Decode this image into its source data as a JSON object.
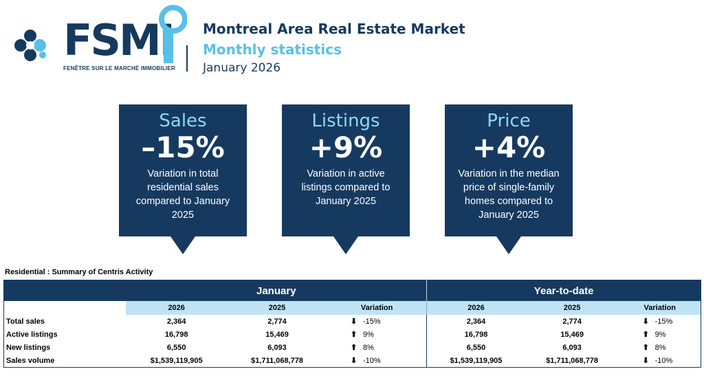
{
  "brand": {
    "name": "FSMI",
    "tagline": "FENÊTRE SUR LE MARCHÉ IMMOBILIER"
  },
  "header": {
    "title": "Montreal Area Real Estate Market",
    "subtitle": "Monthly statistics",
    "date": "January 2026"
  },
  "stats": [
    {
      "title": "Sales",
      "value": "–15%",
      "description": "Variation in total residential sales compared to January 2025"
    },
    {
      "title": "Listings",
      "value": "+9%",
      "description": "Variation in active listings compared to January 2025"
    },
    {
      "title": "Price",
      "value": "+4%",
      "description": "Variation in the median price of single-family homes compared to January 2025"
    }
  ],
  "table": {
    "caption": "Residential : Summary of Centris Activity",
    "group_january": "January",
    "group_ytd": "Year-to-date",
    "col_2026": "2026",
    "col_2025": "2025",
    "col_variation": "Variation",
    "rows": [
      {
        "label": "Total sales",
        "jan_2026": "2,364",
        "jan_2025": "2,774",
        "jan_dir": "down",
        "jan_var": "-15%",
        "ytd_2026": "2,364",
        "ytd_2025": "2,774",
        "ytd_dir": "down",
        "ytd_var": "-15%"
      },
      {
        "label": "Active listings",
        "jan_2026": "16,798",
        "jan_2025": "15,469",
        "jan_dir": "up",
        "jan_var": "9%",
        "ytd_2026": "16,798",
        "ytd_2025": "15,469",
        "ytd_dir": "up",
        "ytd_var": "9%"
      },
      {
        "label": "New listings",
        "jan_2026": "6,550",
        "jan_2025": "6,093",
        "jan_dir": "up",
        "jan_var": "8%",
        "ytd_2026": "6,550",
        "ytd_2025": "6,093",
        "ytd_dir": "up",
        "ytd_var": "8%"
      },
      {
        "label": "Sales volume",
        "jan_2026": "$1,539,119,905",
        "jan_2025": "$1,711,068,778",
        "jan_dir": "down",
        "jan_var": "-10%",
        "ytd_2026": "$1,539,119,905",
        "ytd_2025": "$1,711,068,778",
        "ytd_dir": "down",
        "ytd_var": "-10%"
      }
    ]
  },
  "colors": {
    "navy": "#163a5f",
    "light_blue": "#58c0e8",
    "header_band": "#bfe3f5"
  },
  "icons": {
    "down": "arrow-down-icon",
    "up": "arrow-up-icon"
  }
}
